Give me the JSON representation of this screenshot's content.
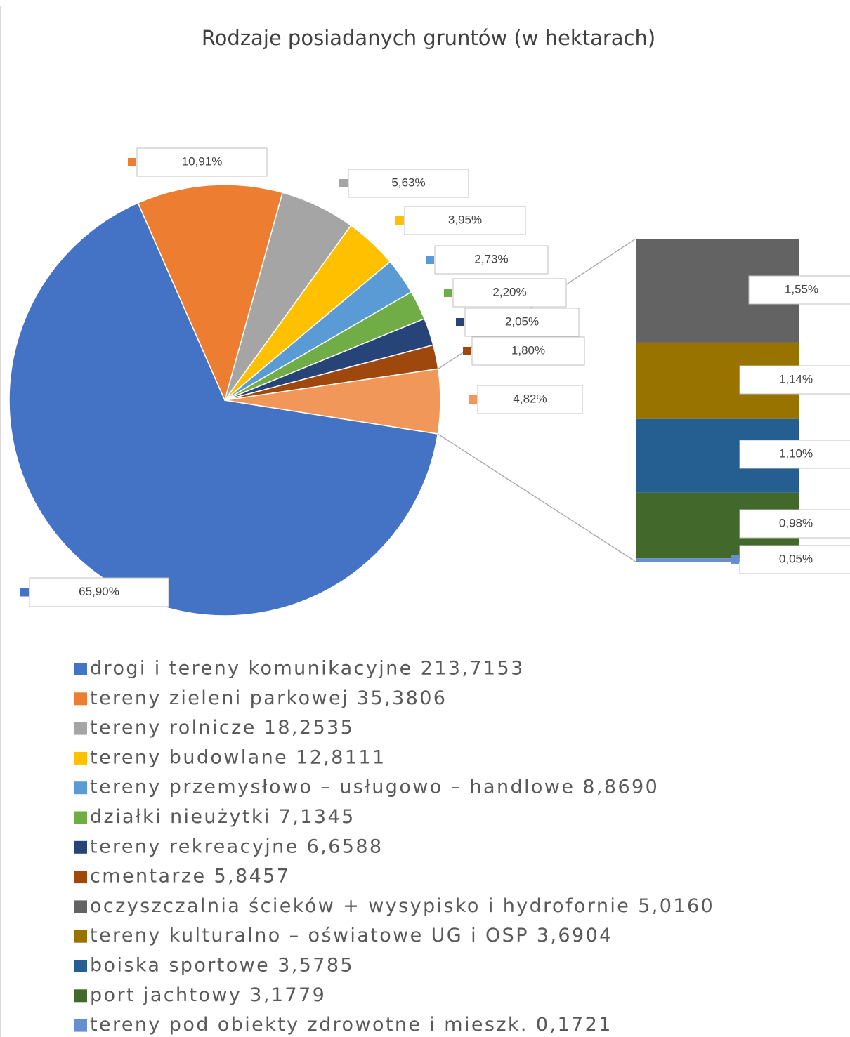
{
  "chart_data": {
    "type": "bar-of-pie",
    "title": "Rodzaje posiadanych gruntów (w hektarach)",
    "categories": [
      "drogi i tereny komunikacyjne 213,7153",
      "tereny zieleni parkowej 35,3806",
      "tereny rolnicze 18,2535",
      "tereny budowlane  12,8111",
      "tereny przemysłowo – usługowo – handlowe 8,8690",
      "działki nieużytki  7,1345",
      "tereny rekreacyjne 6,6588",
      "cmentarze 5,8457",
      "oczyszczalnia ścieków + wysypisko i hydrofornie 5,0160",
      "tereny kulturalno – oświatowe UG i OSP 3,6904",
      "boiska sportowe 3,5785",
      "port jachtowy 3,1779",
      "tereny pod obiekty zdrowotne i mieszk. 0,1721"
    ],
    "values": [
      65.9,
      10.91,
      5.63,
      3.95,
      2.73,
      2.2,
      2.05,
      1.8,
      1.55,
      1.14,
      1.1,
      0.98,
      0.05
    ],
    "value_labels": [
      "65,90%",
      "10,91%",
      "5,63%",
      "3,95%",
      "2,73%",
      "2,20%",
      "2,05%",
      "1,80%",
      "1,55%",
      "1,14%",
      "1,10%",
      "0,98%",
      "0,05%"
    ],
    "colors": [
      "#4472c4",
      "#ed7d31",
      "#a5a5a5",
      "#ffc000",
      "#5b9bd5",
      "#70ad47",
      "#264478",
      "#9e480e",
      "#636363",
      "#997300",
      "#255e91",
      "#43682b",
      "#698ed0"
    ],
    "secondary_count": 5,
    "other_value": 4.82,
    "other_label": "4,82%",
    "other_color": "#f1975a",
    "legend": "bottom"
  }
}
